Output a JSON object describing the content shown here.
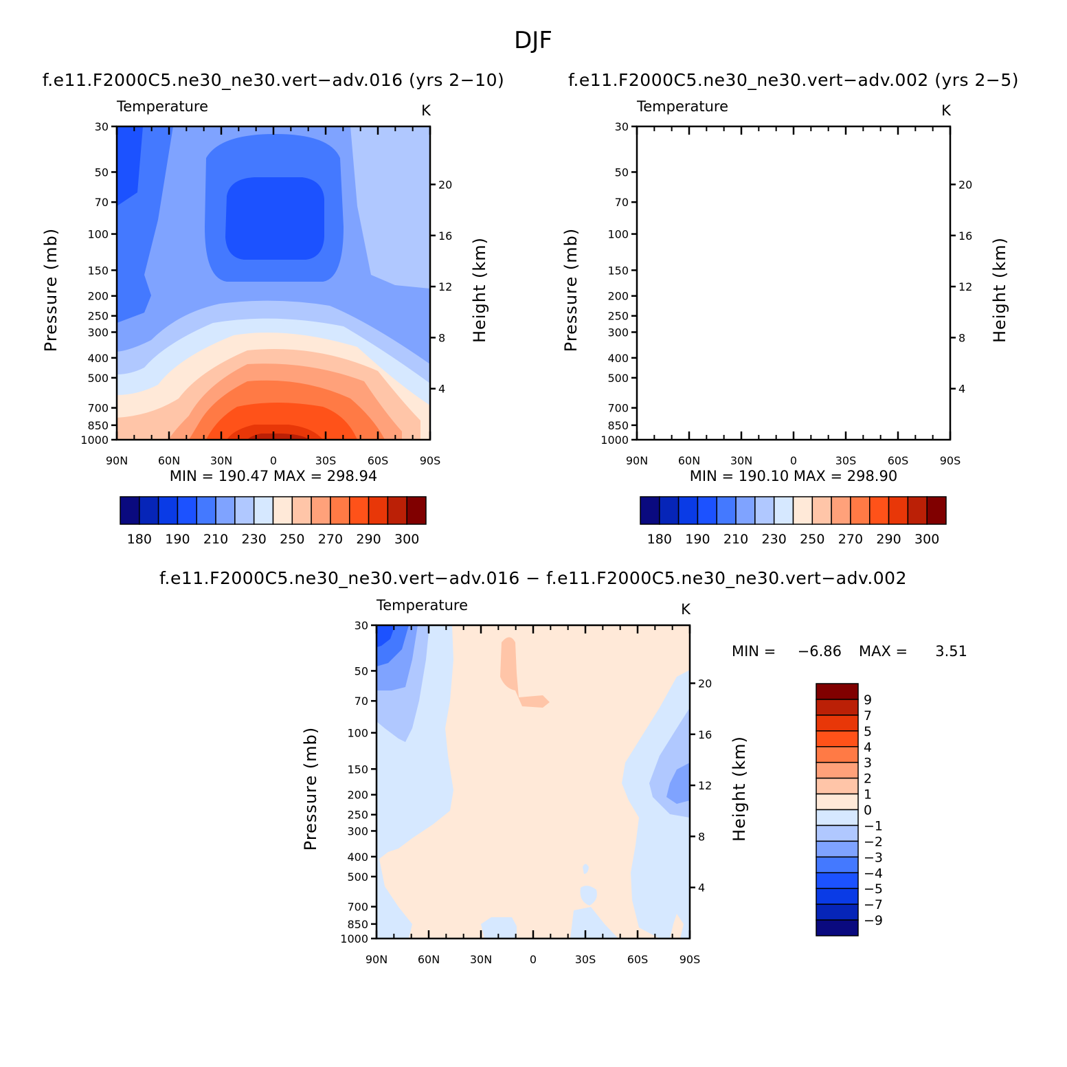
{
  "figure_title": "DJF",
  "colors": {
    "abs_levels": [
      "#0a0a7f",
      "#0625b8",
      "#0a3be6",
      "#1c52ff",
      "#4479ff",
      "#7fa3ff",
      "#b0c8ff",
      "#d6e8ff",
      "#ffe9d8",
      "#ffc5a8",
      "#ffa17a",
      "#ff7a45",
      "#ff5219",
      "#e83708",
      "#bb2006",
      "#800000"
    ],
    "diff_levels": [
      "#0a0a7f",
      "#0625b8",
      "#0a3be6",
      "#1c52ff",
      "#4479ff",
      "#7fa3ff",
      "#b0c8ff",
      "#d6e8ff",
      "#ffe9d8",
      "#ffc5a8",
      "#ffa17a",
      "#ff7a45",
      "#ff5219",
      "#e83708",
      "#bb2006",
      "#800000"
    ]
  },
  "panels": {
    "top_left": {
      "case_title": "f.e11.F2000C5.ne30_ne30.vert−adv.016 (yrs 2−10)",
      "variable": "Temperature",
      "units": "K",
      "min_max": "MIN =  190.47   MAX =  298.94"
    },
    "top_right": {
      "case_title": "f.e11.F2000C5.ne30_ne30.vert−adv.002 (yrs 2−5)",
      "variable": "Temperature",
      "units": "K",
      "min_max": "MIN =  190.10   MAX =  298.90"
    },
    "bottom": {
      "case_title": "f.e11.F2000C5.ne30_ne30.vert−adv.016 − f.e11.F2000C5.ne30_ne30.vert−adv.002",
      "variable": "Temperature",
      "units": "K",
      "min_label": "MIN =",
      "min_value": "−6.86",
      "max_label": "MAX =",
      "max_value": "3.51"
    }
  },
  "axes": {
    "ylabel_left": "Pressure (mb)",
    "ylabel_right": "Height (km)",
    "pressure_ticks": [
      "30",
      "50",
      "70",
      "100",
      "150",
      "200",
      "250",
      "300",
      "400",
      "500",
      "700",
      "850",
      "1000"
    ],
    "height_ticks": [
      "20",
      "16",
      "12",
      "8",
      "4"
    ],
    "lat_ticks": [
      "90N",
      "60N",
      "30N",
      "0",
      "30S",
      "60S",
      "90S"
    ]
  },
  "colorbar_abs_labels": [
    "180",
    "190",
    "210",
    "230",
    "250",
    "270",
    "290",
    "300"
  ],
  "colorbar_diff_labels": [
    "9",
    "7",
    "5",
    "4",
    "3",
    "2",
    "1",
    "0",
    "−1",
    "−2",
    "−3",
    "−4",
    "−5",
    "−7",
    "−9"
  ],
  "chart_data": [
    {
      "type": "heatmap",
      "title": "f.e11.F2000C5.ne30_ne30.vert−adv.016 (yrs 2−10)",
      "xlabel": "",
      "ylabel": "Pressure (mb)",
      "y2label": "Height (km)",
      "x_categories": [
        "90N",
        "60N",
        "30N",
        "0",
        "30S",
        "60S",
        "90S"
      ],
      "y_categories": [
        "30",
        "50",
        "70",
        "100",
        "150",
        "200",
        "250",
        "300",
        "400",
        "500",
        "700",
        "850",
        "1000"
      ],
      "ylim": [
        30,
        1000
      ],
      "yscale": "log",
      "colorbar_levels": [
        180,
        190,
        210,
        230,
        250,
        270,
        290,
        300
      ],
      "min": 190.47,
      "max": 298.94
    },
    {
      "type": "heatmap",
      "title": "f.e11.F2000C5.ne30_ne30.vert−adv.002 (yrs 2−5)",
      "xlabel": "",
      "ylabel": "Pressure (mb)",
      "y2label": "Height (km)",
      "x_categories": [
        "90N",
        "60N",
        "30N",
        "0",
        "30S",
        "60S",
        "90S"
      ],
      "y_categories": [
        "30",
        "50",
        "70",
        "100",
        "150",
        "200",
        "250",
        "300",
        "400",
        "500",
        "700",
        "850",
        "1000"
      ],
      "ylim": [
        30,
        1000
      ],
      "yscale": "log",
      "colorbar_levels": [
        180,
        190,
        210,
        230,
        250,
        270,
        290,
        300
      ],
      "min": 190.1,
      "max": 298.9
    },
    {
      "type": "heatmap",
      "title": "f.e11.F2000C5.ne30_ne30.vert−adv.016 − f.e11.F2000C5.ne30_ne30.vert−adv.002",
      "xlabel": "",
      "ylabel": "Pressure (mb)",
      "y2label": "Height (km)",
      "x_categories": [
        "90N",
        "60N",
        "30N",
        "0",
        "30S",
        "60S",
        "90S"
      ],
      "y_categories": [
        "30",
        "50",
        "70",
        "100",
        "150",
        "200",
        "250",
        "300",
        "400",
        "500",
        "700",
        "850",
        "1000"
      ],
      "ylim": [
        30,
        1000
      ],
      "yscale": "log",
      "colorbar_levels": [
        9,
        7,
        5,
        4,
        3,
        2,
        1,
        0,
        -1,
        -2,
        -3,
        -4,
        -5,
        -7,
        -9
      ],
      "min": -6.86,
      "max": 3.51
    }
  ]
}
